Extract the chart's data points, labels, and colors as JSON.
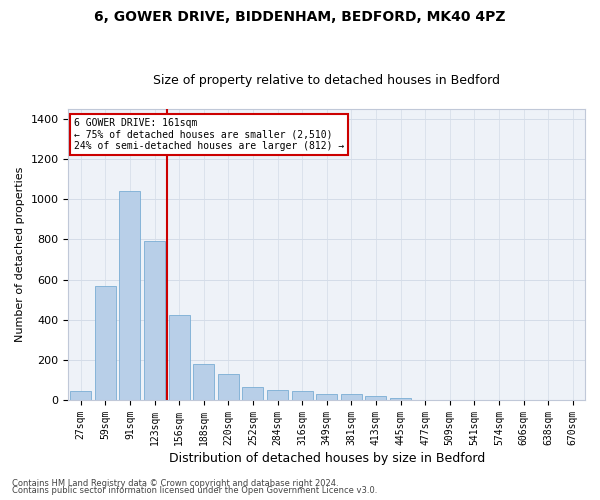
{
  "title1": "6, GOWER DRIVE, BIDDENHAM, BEDFORD, MK40 4PZ",
  "title2": "Size of property relative to detached houses in Bedford",
  "xlabel": "Distribution of detached houses by size in Bedford",
  "ylabel": "Number of detached properties",
  "categories": [
    "27sqm",
    "59sqm",
    "91sqm",
    "123sqm",
    "156sqm",
    "188sqm",
    "220sqm",
    "252sqm",
    "284sqm",
    "316sqm",
    "349sqm",
    "381sqm",
    "413sqm",
    "445sqm",
    "477sqm",
    "509sqm",
    "541sqm",
    "574sqm",
    "606sqm",
    "638sqm",
    "670sqm"
  ],
  "values": [
    45,
    570,
    1040,
    790,
    425,
    180,
    130,
    65,
    50,
    45,
    28,
    28,
    20,
    12,
    0,
    0,
    0,
    0,
    0,
    0,
    0
  ],
  "bar_color": "#b8cfe8",
  "bar_edge_color": "#7aadd4",
  "vline_x": 3.5,
  "vline_color": "#cc0000",
  "ylim": [
    0,
    1450
  ],
  "yticks": [
    0,
    200,
    400,
    600,
    800,
    1000,
    1200,
    1400
  ],
  "annotation_text": "6 GOWER DRIVE: 161sqm\n← 75% of detached houses are smaller (2,510)\n24% of semi-detached houses are larger (812) →",
  "annotation_box_color": "#ffffff",
  "annotation_box_edge": "#cc0000",
  "grid_color": "#d4dce8",
  "bg_color": "#eef2f8",
  "footer1": "Contains HM Land Registry data © Crown copyright and database right 2024.",
  "footer2": "Contains public sector information licensed under the Open Government Licence v3.0.",
  "title1_fontsize": 10,
  "title2_fontsize": 9,
  "xlabel_fontsize": 9,
  "ylabel_fontsize": 8,
  "tick_fontsize": 7,
  "ytick_fontsize": 8,
  "annot_fontsize": 7,
  "footer_fontsize": 6
}
